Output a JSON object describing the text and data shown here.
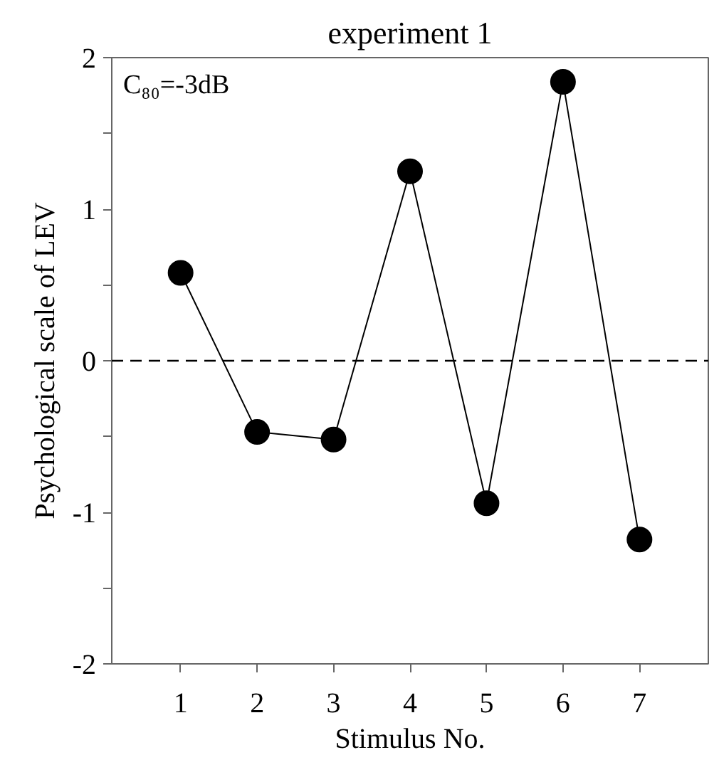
{
  "chart_data": {
    "type": "line",
    "title": "experiment 1",
    "xlabel": "Stimulus No.",
    "ylabel": "Psychological scale of LEV",
    "x": [
      1,
      2,
      3,
      4,
      5,
      6,
      7
    ],
    "series": [
      {
        "color": "#000000",
        "values": [
          0.58,
          -0.47,
          -0.52,
          1.25,
          -0.94,
          1.84,
          -1.18
        ]
      }
    ],
    "xlim": [
      0.1,
      7.9
    ],
    "xticks": [
      1,
      2,
      3,
      4,
      5,
      6,
      7
    ],
    "ylim": [
      -2,
      2
    ],
    "yticks": [
      -2,
      {
        "value": -1.5,
        "label": null
      },
      -1,
      {
        "value": -0.5,
        "label": null
      },
      0,
      {
        "value": 0.5,
        "label": null
      },
      1,
      {
        "value": 1.5,
        "label": null
      },
      2
    ],
    "ref_lines": [
      {
        "axis": "y",
        "value": 0,
        "color": "#000000",
        "line_style": "dashed"
      }
    ],
    "annotations": [
      "C₈₀=-3dB"
    ],
    "marker": "circle",
    "line_style": "solid"
  }
}
